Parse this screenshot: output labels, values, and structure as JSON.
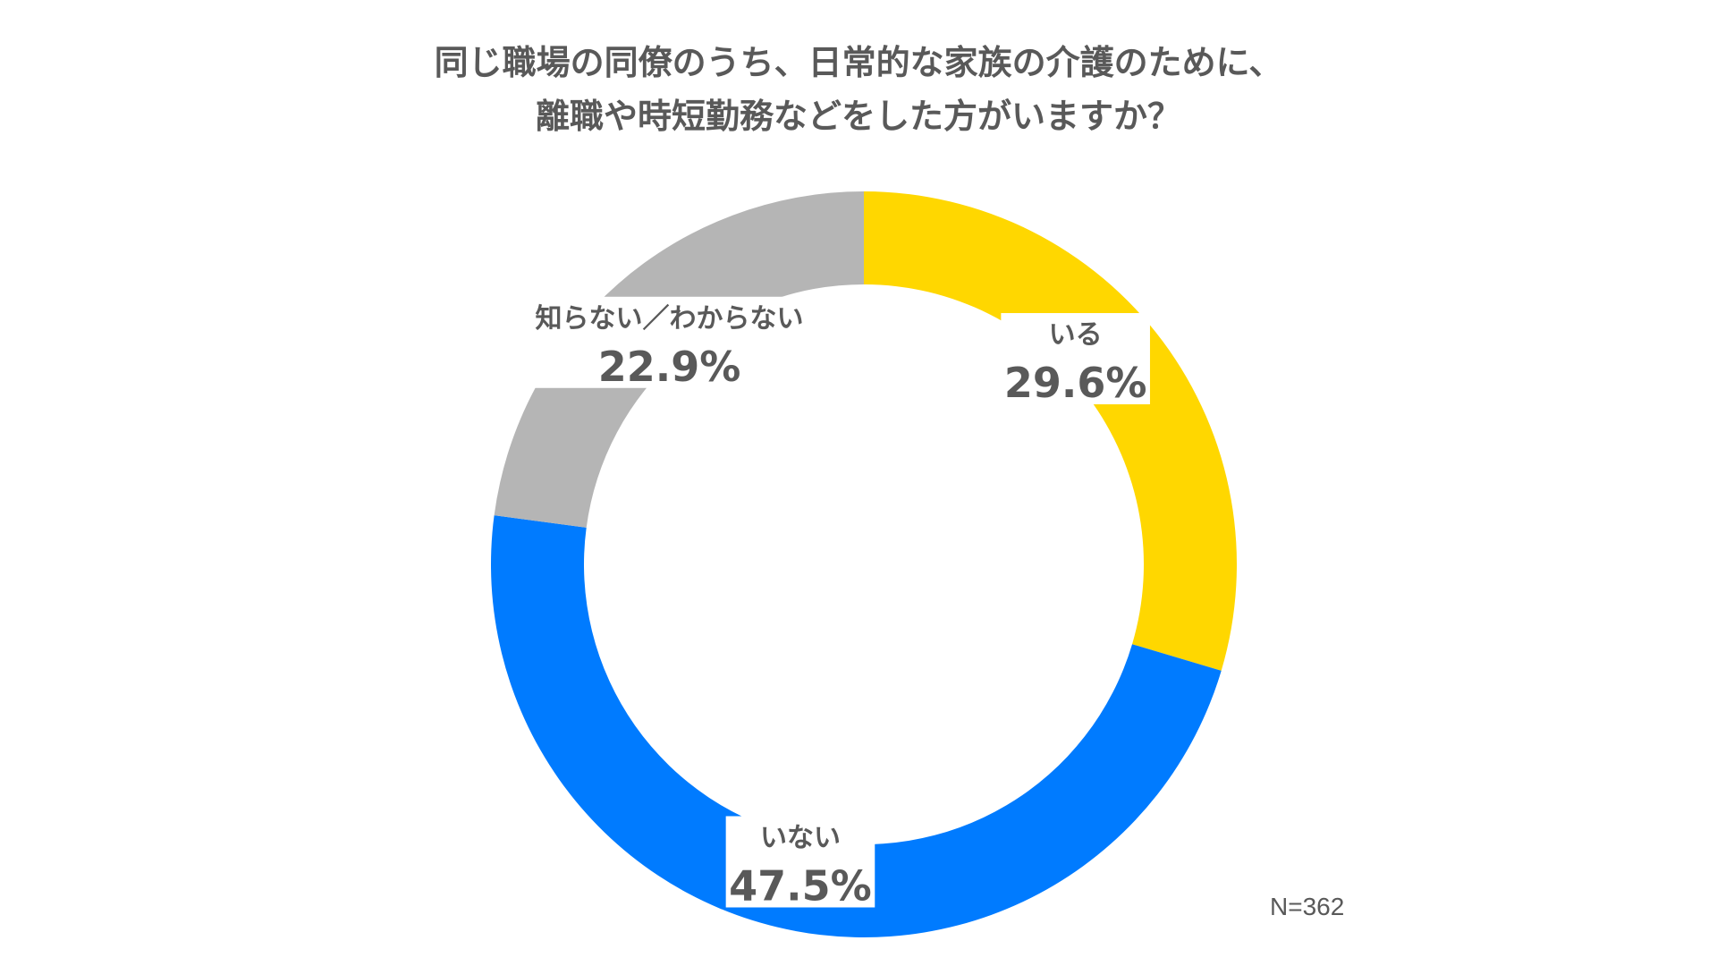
{
  "chart_data": {
    "type": "pie",
    "title": "同じ職場の同僚のうち、日常的な家族の介護のために、\n離職や時短勤務などをした方がいますか？",
    "title_lines": [
      "同じ職場の同僚のうち、日常的な家族の介護のために、",
      "離職や時短勤務などをした方がいますか？"
    ],
    "style": "donut",
    "categories": [
      "いる",
      "いない",
      "知らない／わからない"
    ],
    "values": [
      29.6,
      47.5,
      22.9
    ],
    "value_labels": [
      "29.6%",
      "47.5%",
      "22.9%"
    ],
    "unit": "%",
    "colors": [
      "#FFD700",
      "#007BFF",
      "#B5B5B5"
    ],
    "start": "12 o'clock",
    "direction": "clockwise",
    "note": "N=362"
  }
}
